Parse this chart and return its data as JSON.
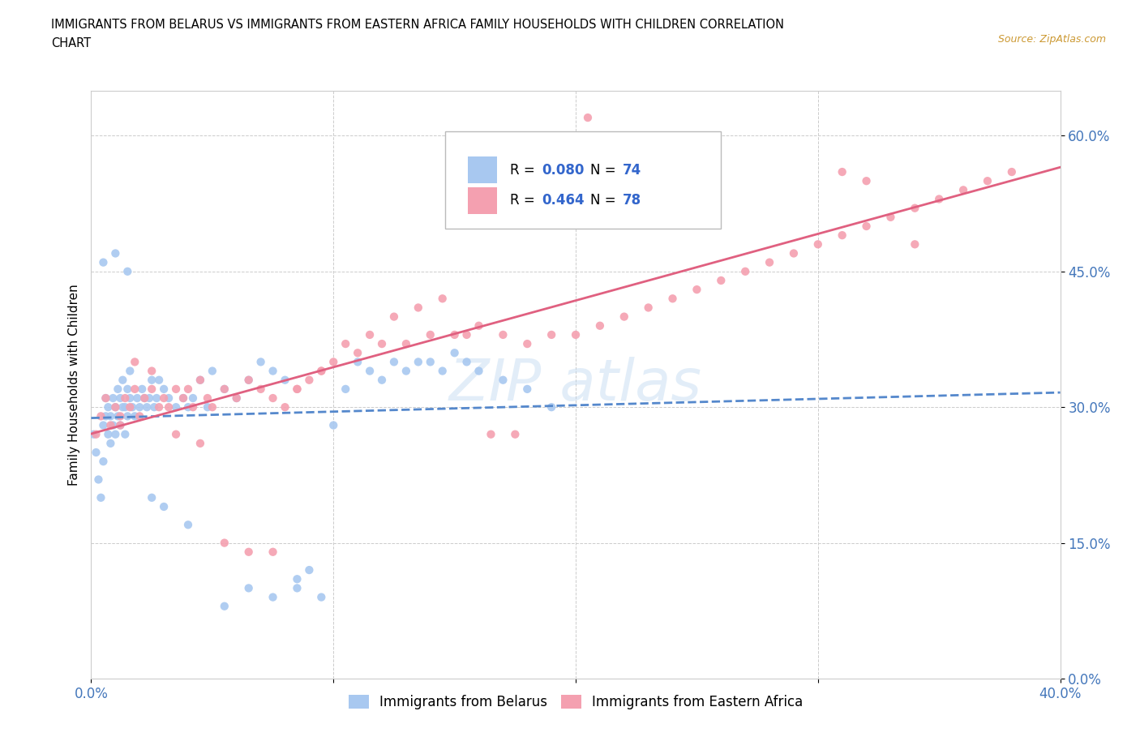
{
  "title_line1": "IMMIGRANTS FROM BELARUS VS IMMIGRANTS FROM EASTERN AFRICA FAMILY HOUSEHOLDS WITH CHILDREN CORRELATION",
  "title_line2": "CHART",
  "source": "Source: ZipAtlas.com",
  "ylabel": "Family Households with Children",
  "xlim": [
    0,
    0.4
  ],
  "ylim": [
    0,
    0.65
  ],
  "r_belarus": 0.08,
  "n_belarus": 74,
  "r_eastern_africa": 0.464,
  "n_eastern_africa": 78,
  "color_belarus": "#a8c8f0",
  "color_eastern_africa": "#f4a0b0",
  "line_color_belarus": "#5588cc",
  "line_color_eastern_africa": "#e06080",
  "scatter_belarus_x": [
    0.001,
    0.002,
    0.003,
    0.004,
    0.005,
    0.005,
    0.006,
    0.006,
    0.007,
    0.007,
    0.008,
    0.008,
    0.009,
    0.009,
    0.01,
    0.01,
    0.011,
    0.011,
    0.012,
    0.012,
    0.013,
    0.013,
    0.014,
    0.014,
    0.015,
    0.015,
    0.016,
    0.016,
    0.017,
    0.018,
    0.019,
    0.02,
    0.021,
    0.022,
    0.023,
    0.024,
    0.025,
    0.026,
    0.027,
    0.028,
    0.03,
    0.032,
    0.035,
    0.038,
    0.04,
    0.042,
    0.045,
    0.048,
    0.05,
    0.055,
    0.06,
    0.065,
    0.07,
    0.075,
    0.08,
    0.085,
    0.09,
    0.095,
    0.1,
    0.105,
    0.11,
    0.115,
    0.12,
    0.125,
    0.13,
    0.135,
    0.14,
    0.145,
    0.15,
    0.155,
    0.16,
    0.17,
    0.18,
    0.19
  ],
  "scatter_belarus_y": [
    0.27,
    0.25,
    0.22,
    0.2,
    0.24,
    0.28,
    0.29,
    0.31,
    0.27,
    0.3,
    0.26,
    0.29,
    0.28,
    0.31,
    0.27,
    0.3,
    0.29,
    0.32,
    0.28,
    0.31,
    0.3,
    0.33,
    0.27,
    0.3,
    0.29,
    0.32,
    0.31,
    0.34,
    0.3,
    0.29,
    0.31,
    0.3,
    0.32,
    0.31,
    0.3,
    0.31,
    0.33,
    0.3,
    0.31,
    0.33,
    0.32,
    0.31,
    0.3,
    0.31,
    0.3,
    0.31,
    0.33,
    0.3,
    0.34,
    0.32,
    0.31,
    0.33,
    0.35,
    0.34,
    0.33,
    0.1,
    0.12,
    0.09,
    0.28,
    0.32,
    0.35,
    0.34,
    0.33,
    0.35,
    0.34,
    0.35,
    0.35,
    0.34,
    0.36,
    0.35,
    0.34,
    0.33,
    0.32,
    0.3
  ],
  "scatter_belarus_y_outliers": [
    0.46,
    0.47,
    0.45,
    0.2,
    0.19,
    0.17,
    0.08,
    0.1,
    0.09,
    0.11
  ],
  "scatter_eastern_africa_x": [
    0.002,
    0.004,
    0.006,
    0.008,
    0.01,
    0.012,
    0.014,
    0.016,
    0.018,
    0.02,
    0.022,
    0.025,
    0.028,
    0.03,
    0.032,
    0.035,
    0.038,
    0.04,
    0.042,
    0.045,
    0.048,
    0.05,
    0.055,
    0.06,
    0.065,
    0.07,
    0.075,
    0.08,
    0.085,
    0.09,
    0.095,
    0.1,
    0.11,
    0.12,
    0.13,
    0.14,
    0.15,
    0.16,
    0.17,
    0.18,
    0.19,
    0.2,
    0.21,
    0.22,
    0.23,
    0.24,
    0.25,
    0.26,
    0.27,
    0.28,
    0.29,
    0.3,
    0.31,
    0.32,
    0.33,
    0.34,
    0.35,
    0.36,
    0.37,
    0.38,
    0.012,
    0.018,
    0.025,
    0.035,
    0.045,
    0.055,
    0.065,
    0.075,
    0.085,
    0.095,
    0.105,
    0.115,
    0.125,
    0.135,
    0.145,
    0.155,
    0.165,
    0.175
  ],
  "scatter_eastern_africa_y": [
    0.27,
    0.29,
    0.31,
    0.28,
    0.3,
    0.29,
    0.31,
    0.3,
    0.32,
    0.29,
    0.31,
    0.32,
    0.3,
    0.31,
    0.3,
    0.32,
    0.31,
    0.32,
    0.3,
    0.33,
    0.31,
    0.3,
    0.32,
    0.31,
    0.33,
    0.32,
    0.31,
    0.3,
    0.32,
    0.33,
    0.34,
    0.35,
    0.36,
    0.37,
    0.37,
    0.38,
    0.38,
    0.39,
    0.38,
    0.37,
    0.38,
    0.38,
    0.39,
    0.4,
    0.41,
    0.42,
    0.43,
    0.44,
    0.45,
    0.46,
    0.47,
    0.48,
    0.49,
    0.5,
    0.51,
    0.52,
    0.53,
    0.54,
    0.55,
    0.56,
    0.28,
    0.35,
    0.34,
    0.27,
    0.26,
    0.15,
    0.14,
    0.14,
    0.32,
    0.34,
    0.37,
    0.38,
    0.4,
    0.41,
    0.42,
    0.38,
    0.27,
    0.27
  ],
  "scatter_eastern_africa_y_special": [
    0.58,
    0.6,
    0.62,
    0.56,
    0.55,
    0.48
  ],
  "scatter_eastern_africa_x_special": [
    0.195,
    0.2,
    0.205,
    0.31,
    0.32,
    0.34
  ]
}
